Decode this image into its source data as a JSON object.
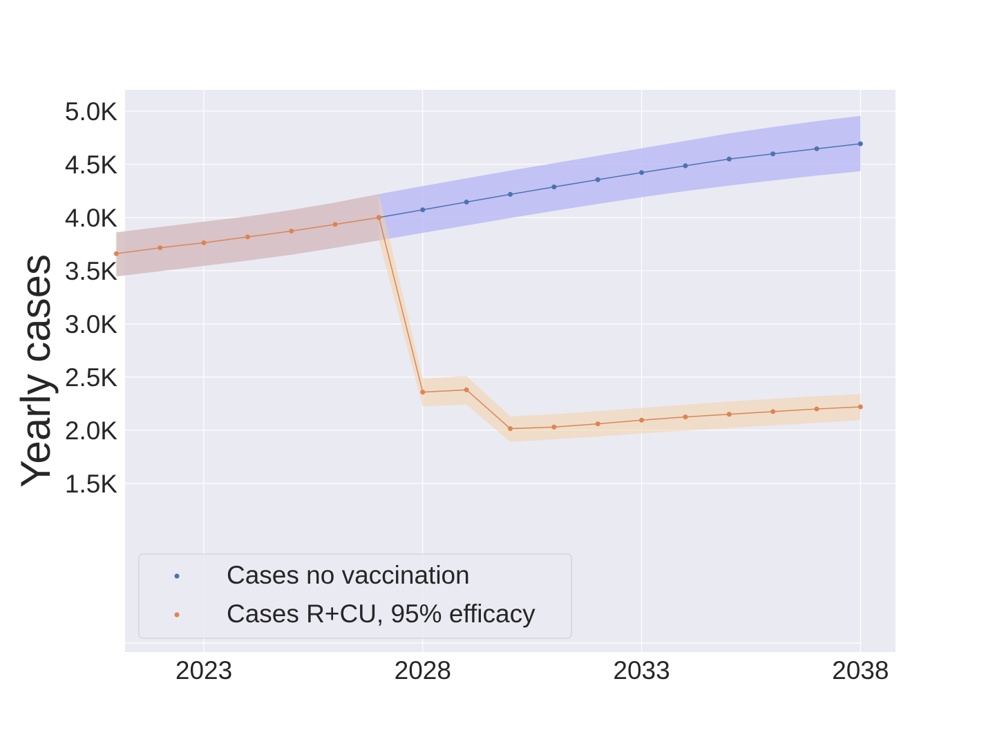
{
  "chart_data": {
    "type": "line",
    "xlabel": "",
    "ylabel": "Yearly cases",
    "xlim": [
      2021.2,
      2038.8
    ],
    "ylim": [
      -85,
      5200
    ],
    "x_ticks": [
      2023,
      2028,
      2033,
      2038
    ],
    "x_tick_labels": [
      "2023",
      "2028",
      "2033",
      "2038"
    ],
    "y_ticks": [
      1500,
      2000,
      2500,
      3000,
      3500,
      4000,
      4500,
      5000
    ],
    "y_tick_labels": [
      "1.5K",
      "2.0K",
      "2.5K",
      "3.0K",
      "3.5K",
      "4.0K",
      "4.5K",
      "5.0K"
    ],
    "grid": true,
    "legend_position": "lower-left",
    "colors": {
      "background": "#eaeaf2",
      "grid": "#ffffff",
      "no_vaccination_line": "#4c72b0",
      "no_vaccination_band": "#b4b4f5",
      "vaccination_line": "#dd8452",
      "vaccination_band": "#f2d2a9",
      "overlap_band": "#c6b2c6",
      "text": "#262626"
    },
    "series": [
      {
        "name": "Cases no vaccination",
        "x": [
          2027,
          2028,
          2029,
          2030,
          2031,
          2032,
          2033,
          2034,
          2035,
          2036,
          2037,
          2038
        ],
        "values": [
          4000,
          4072,
          4145,
          4217,
          4287,
          4355,
          4422,
          4486,
          4549,
          4598,
          4646,
          4693
        ],
        "lower": [
          3785,
          3855,
          3925,
          3995,
          4062,
          4127,
          4190,
          4248,
          4300,
          4348,
          4393,
          4435
        ],
        "upper": [
          4220,
          4295,
          4368,
          4440,
          4510,
          4580,
          4650,
          4720,
          4790,
          4850,
          4905,
          4955
        ]
      },
      {
        "name": "Cases R+CU, 95% efficacy",
        "x": [
          2021,
          2022,
          2023,
          2024,
          2025,
          2026,
          2027,
          2028,
          2029,
          2030,
          2031,
          2032,
          2033,
          2034,
          2035,
          2036,
          2037,
          2038
        ],
        "values": [
          3660,
          3715,
          3762,
          3817,
          3872,
          3935,
          4000,
          2358,
          2380,
          2015,
          2030,
          2060,
          2095,
          2125,
          2150,
          2175,
          2200,
          2220
        ],
        "lower": [
          3445,
          3495,
          3545,
          3595,
          3650,
          3715,
          3785,
          2225,
          2240,
          1890,
          1915,
          1940,
          1970,
          1995,
          2020,
          2045,
          2070,
          2095
        ],
        "upper": [
          3860,
          3910,
          3960,
          4010,
          4070,
          4140,
          4220,
          2485,
          2510,
          2130,
          2150,
          2180,
          2210,
          2240,
          2270,
          2295,
          2320,
          2340
        ]
      }
    ]
  }
}
